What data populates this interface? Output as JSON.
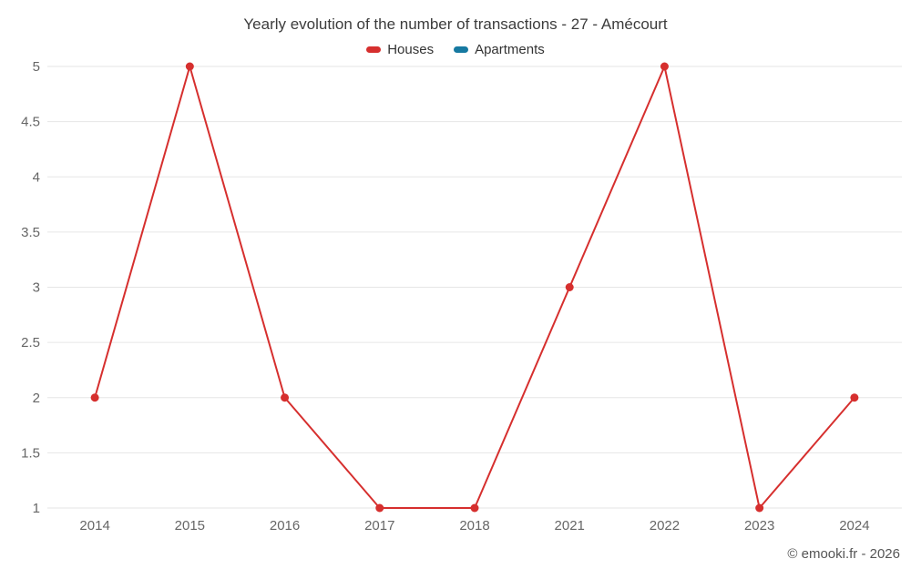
{
  "chart_data": {
    "type": "line",
    "title": "Yearly evolution of the number of transactions - 27 - Amécourt",
    "categories": [
      "2014",
      "2015",
      "2016",
      "2017",
      "2018",
      "2021",
      "2022",
      "2023",
      "2024"
    ],
    "series": [
      {
        "name": "Houses",
        "color": "#d62f2e",
        "values": [
          2,
          5,
          2,
          1,
          1,
          3,
          5,
          1,
          2
        ]
      },
      {
        "name": "Apartments",
        "color": "#1679a1",
        "values": []
      }
    ],
    "xlabel": "",
    "ylabel": "",
    "ylim": [
      1,
      5
    ],
    "yticks": [
      1,
      1.5,
      2,
      2.5,
      3,
      3.5,
      4,
      4.5,
      5
    ],
    "grid": "horizontal",
    "legend_position": "top"
  },
  "colors": {
    "grid": "#e6e6e6",
    "tick_text": "#666666",
    "title_text": "#3c3c3c"
  },
  "footer": {
    "credit": "© emooki.fr - 2026"
  }
}
